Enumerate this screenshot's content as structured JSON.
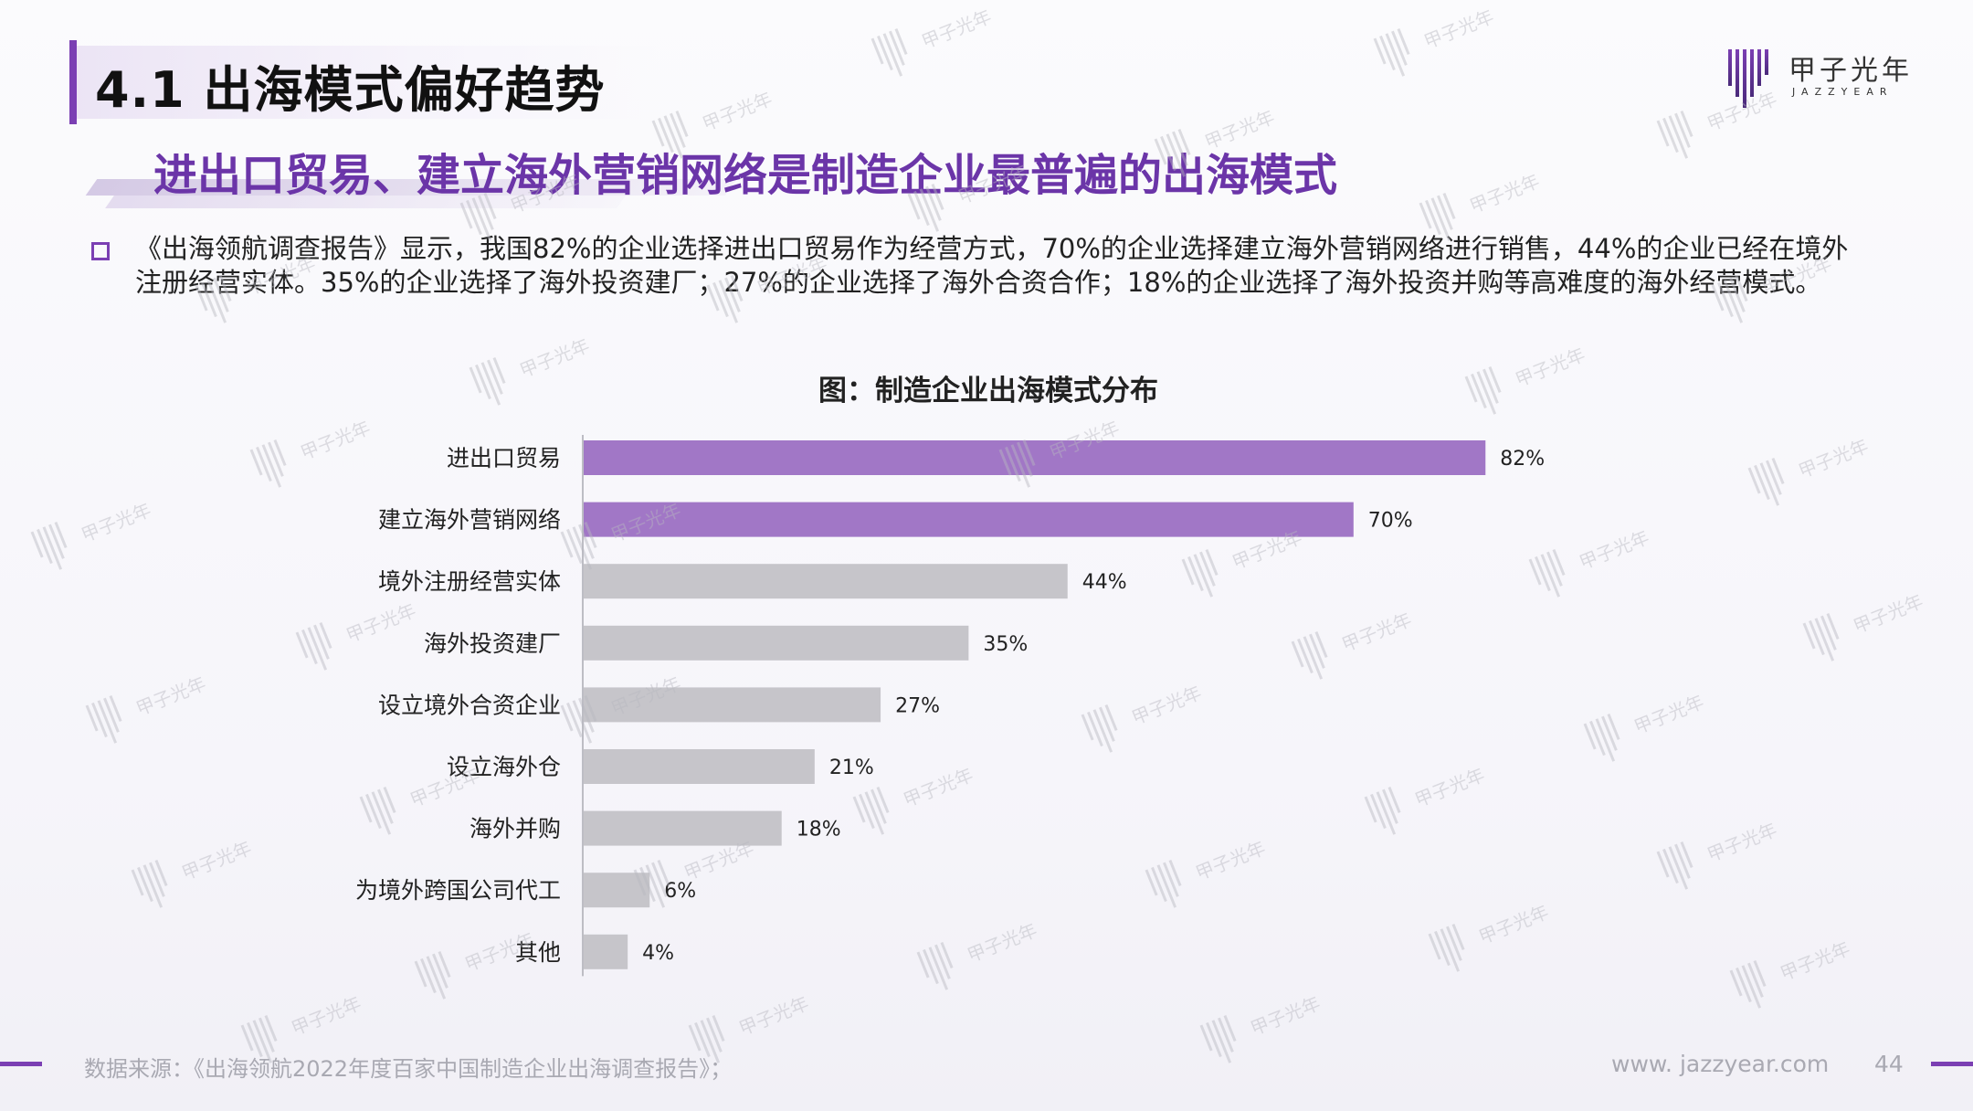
{
  "header": {
    "title": "4.1 出海模式偏好趋势",
    "subtitle": "进出口贸易、建立海外营销网络是制造企业最普遍的出海模式"
  },
  "logo": {
    "name_cn": "甲子光年",
    "name_en": "JAZZYEAR"
  },
  "body": {
    "paragraph": "《出海领航调查报告》显示，我国82%的企业选择进出口贸易作为经营方式，70%的企业选择建立海外营销网络进行销售，44%的企业已经在境外注册经营实体。35%的企业选择了海外投资建厂；27%的企业选择了海外合资合作；18%的企业选择了海外投资并购等高难度的海外经营模式。"
  },
  "chart_data": {
    "type": "bar",
    "orientation": "horizontal",
    "title": "图：制造企业出海模式分布",
    "categories": [
      "进出口贸易",
      "建立海外营销网络",
      "境外注册经营实体",
      "海外投资建厂",
      "设立境外合资企业",
      "设立海外仓",
      "海外并购",
      "为境外跨国公司代工",
      "其他"
    ],
    "values": [
      82,
      70,
      44,
      35,
      27,
      21,
      18,
      6,
      4
    ],
    "value_labels": [
      "82%",
      "70%",
      "44%",
      "35%",
      "27%",
      "21%",
      "18%",
      "6%",
      "4%"
    ],
    "xlim": [
      0,
      100
    ],
    "grid": false,
    "highlight_color": "#a177c6",
    "bar_color": "#c6c5ca",
    "highlight_count": 2
  },
  "watermark": {
    "text": "甲子光年"
  },
  "footer": {
    "source": "数据来源：《出海领航2022年度百家中国制造企业出海调查报告》；",
    "website": "www. jazzyear.com",
    "page_number": "44"
  }
}
